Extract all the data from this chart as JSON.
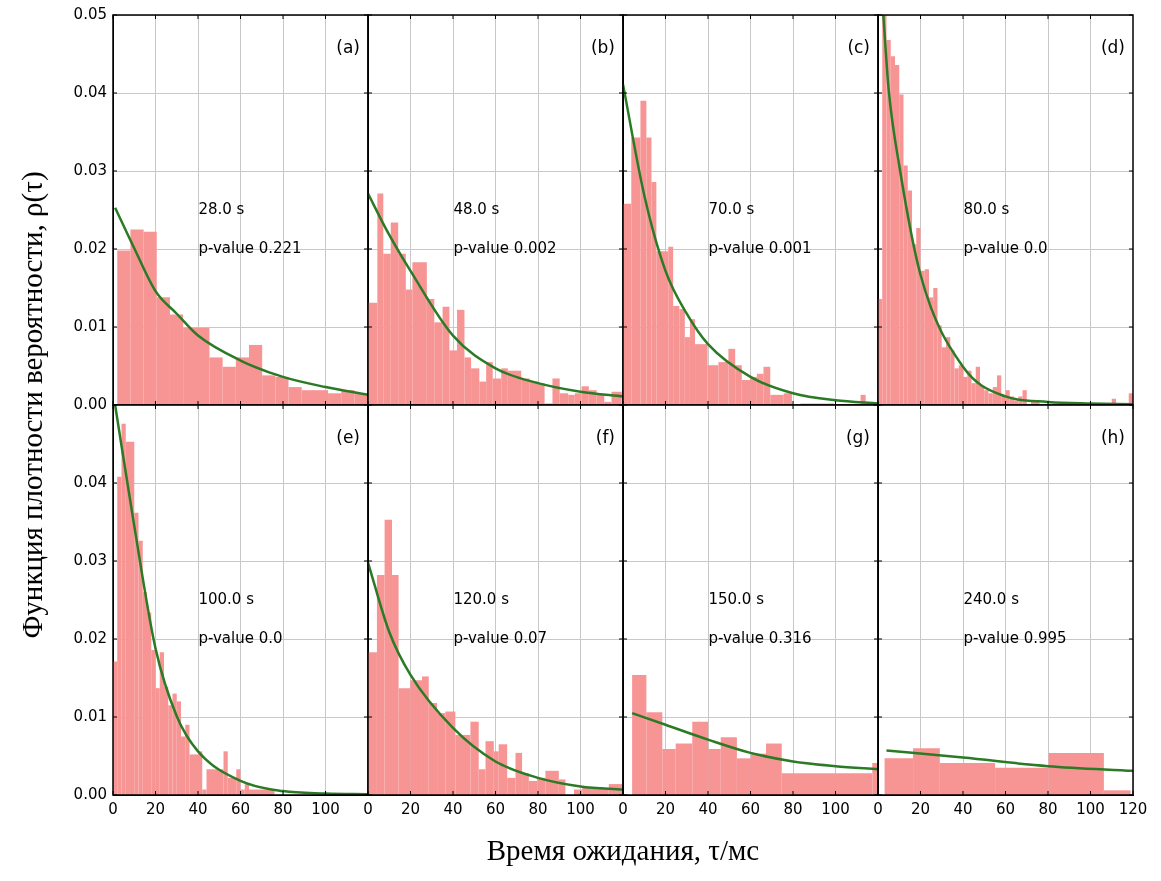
{
  "chart_data": [
    {
      "type": "histogram",
      "ylabel": "Функция плотности вероятности, ρ(τ)",
      "color": "#f79595",
      "tick_labels": "y",
      "grid": true,
      "xlim": [
        0,
        120
      ],
      "ylim": [
        0,
        0.05
      ],
      "xticks": [
        0,
        20,
        40,
        60,
        80,
        100
      ],
      "yticks": [
        {
          "value": 0,
          "label": "0.00"
        },
        {
          "value": 0.01,
          "label": "0.01"
        },
        {
          "value": 0.02,
          "label": "0.02"
        },
        {
          "value": 0.03,
          "label": "0.03"
        },
        {
          "value": 0.04,
          "label": "0.04"
        },
        {
          "value": 0.05,
          "label": "0.05"
        }
      ],
      "annotations": [
        "(a)",
        "28.0 s",
        "p-value 0.221"
      ],
      "bins": [
        2,
        8.2,
        14.4,
        20.6,
        26.8,
        33,
        45.4,
        51.6,
        57.8,
        64,
        70.2,
        76.4,
        82.6,
        88.8,
        101.2,
        107.4,
        113.6,
        119.8
      ],
      "values": [
        0.0198,
        0.0225,
        0.0222,
        0.0138,
        0.0116,
        0.0099,
        0.0061,
        0.0049,
        0.0061,
        0.0077,
        0.0038,
        0.0036,
        0.0023,
        0.0019,
        0.0015,
        0.0019,
        0.0015
      ],
      "series": [
        {
          "type": "line",
          "color": "#2b7a25",
          "x": [
            1,
            10,
            20,
            30,
            40,
            60,
            80,
            100,
            120
          ],
          "values": [
            0.0253,
            0.0201,
            0.0146,
            0.0117,
            0.0089,
            0.0057,
            0.0036,
            0.0023,
            0.0013
          ]
        }
      ]
    },
    {
      "type": "histogram",
      "color": "#f79595",
      "tick_labels": false,
      "grid": true,
      "xlim": [
        0,
        120
      ],
      "ylim": [
        0,
        0.05
      ],
      "xticks": [
        0,
        20,
        40,
        60,
        80,
        100
      ],
      "yticks": [
        0,
        0.01,
        0.02,
        0.03,
        0.04,
        0.05
      ],
      "annotations": [
        "(b)",
        "48.0 s",
        "p-value 0.002"
      ],
      "bins": [
        0,
        4.4,
        7.2,
        10.7,
        14.2,
        17.8,
        20.9,
        27.7,
        31.2,
        35.1,
        38.3,
        41.9,
        45.4,
        48.5,
        52.4,
        55.6,
        58.7,
        62.7,
        65.8,
        72.1,
        76.1,
        80,
        83.1,
        86.8,
        90.2,
        94.2,
        97.3,
        100.5,
        103.9,
        107.6,
        111.2,
        114.6,
        119.4
      ],
      "values": [
        0.0131,
        0.0271,
        0.0194,
        0.0234,
        0.0194,
        0.0148,
        0.0183,
        0.0136,
        0.0106,
        0.0126,
        0.007,
        0.0122,
        0.0061,
        0.0047,
        0.003,
        0.0055,
        0.0034,
        0.0047,
        0.0044,
        0.0034,
        0.003,
        0.0028,
        0.0002,
        0.0034,
        0.0015,
        0.0013,
        0.0015,
        0.0024,
        0.0019,
        0.0013,
        0.0004,
        0.0017
      ],
      "series": [
        {
          "type": "line",
          "color": "#2b7a25",
          "x": [
            0,
            10,
            20,
            40,
            60,
            80,
            100,
            120
          ],
          "values": [
            0.0271,
            0.0218,
            0.0172,
            0.0089,
            0.0047,
            0.0028,
            0.0017,
            0.0011
          ]
        }
      ]
    },
    {
      "type": "histogram",
      "color": "#f79595",
      "tick_labels": false,
      "grid": true,
      "xlim": [
        0,
        120
      ],
      "ylim": [
        0,
        0.05
      ],
      "xticks": [
        0,
        20,
        40,
        60,
        80,
        100
      ],
      "yticks": [
        0,
        0.01,
        0.02,
        0.03,
        0.04,
        0.05
      ],
      "annotations": [
        "(c)",
        "70.0 s",
        "p-value 0.001"
      ],
      "bins": [
        0,
        3.9,
        8.2,
        11.0,
        13.4,
        15.7,
        21.3,
        23.6,
        26.5,
        29.1,
        31.5,
        33.9,
        39.8,
        44.9,
        49.6,
        52.8,
        55.9,
        59.8,
        63.0,
        66.1,
        69.3,
        75.6,
        79.5,
        83.5,
        99.2,
        111.8,
        114.2
      ],
      "values": [
        0.0258,
        0.0343,
        0.039,
        0.0343,
        0.0286,
        0.0197,
        0.0203,
        0.0127,
        0.0123,
        0.0087,
        0.011,
        0.0078,
        0.0051,
        0.0055,
        0.0072,
        0.0051,
        0.0032,
        0.0036,
        0.004,
        0.0049,
        0.0013,
        0.0015,
        null,
        0.0002,
        0.0001,
        0.0013
      ],
      "series": [
        {
          "type": "line",
          "color": "#2b7a25",
          "x": [
            0,
            10,
            20,
            30,
            40,
            60,
            80,
            100,
            120
          ],
          "values": [
            0.0411,
            0.0269,
            0.0172,
            0.0117,
            0.0078,
            0.0036,
            0.0015,
            0.0006,
            0.0002
          ]
        }
      ]
    },
    {
      "type": "histogram",
      "color": "#f79595",
      "tick_labels": false,
      "grid": true,
      "xlim": [
        0,
        120
      ],
      "ylim": [
        0,
        0.05
      ],
      "xticks": [
        0,
        20,
        40,
        60,
        80,
        100
      ],
      "yticks": [
        0,
        0.01,
        0.02,
        0.03,
        0.04,
        0.05
      ],
      "annotations": [
        "(d)",
        "80.0 s",
        "p-value 0.0"
      ],
      "bins": [
        0,
        2,
        4,
        6,
        8,
        10,
        12,
        14,
        16,
        18,
        20,
        22,
        24,
        26,
        28,
        30,
        32,
        34,
        36,
        38,
        40,
        42,
        44,
        46,
        48,
        50,
        52,
        54,
        56,
        58,
        60,
        62,
        64,
        66,
        68,
        70,
        72,
        76,
        88,
        92,
        94,
        110,
        112,
        118,
        120
      ],
      "values": [
        0.0136,
        0.05,
        0.0468,
        0.0447,
        0.0436,
        0.0398,
        0.0307,
        0.0275,
        0.0206,
        0.0227,
        0.0172,
        0.0174,
        0.0138,
        0.015,
        0.0102,
        0.0074,
        0.0087,
        0.007,
        0.0047,
        0.0051,
        0.0036,
        0.0044,
        0.0028,
        0.0049,
        0.0025,
        0.0019,
        0.0015,
        0.0023,
        0.0038,
        0.0013,
        0.0019,
        0.0011,
        0.0006,
        0.0011,
        0.0019,
        null,
        0.0004,
        null,
        0.0001,
        null,
        0.0001,
        0.0008,
        null,
        0.0015
      ],
      "series": [
        {
          "type": "line",
          "color": "#2b7a25",
          "x": [
            2.5,
            5,
            10,
            20,
            40,
            60,
            80,
            100,
            120
          ],
          "values": [
            0.05,
            0.0405,
            0.0307,
            0.0167,
            0.0049,
            0.0011,
            0.0004,
            0.0002,
            0.0001
          ]
        }
      ]
    },
    {
      "type": "histogram",
      "xlabel": "Время ожидания, τ/мс",
      "color": "#f79595",
      "grid": true,
      "xlim": [
        0,
        120
      ],
      "ylim": [
        0,
        0.05
      ],
      "xticks": [
        0,
        20,
        40,
        60,
        80,
        100
      ],
      "yticks": [
        {
          "value": 0,
          "label": "0.00"
        },
        {
          "value": 0.01,
          "label": "0.01"
        },
        {
          "value": 0.02,
          "label": "0.02"
        },
        {
          "value": 0.03,
          "label": "0.03"
        },
        {
          "value": 0.04,
          "label": "0.04"
        },
        {
          "value": 0.05,
          "label": null
        }
      ],
      "annotations": [
        "(e)",
        "100.0 s",
        "p-value 0.0"
      ],
      "bins": [
        0,
        2,
        4,
        6,
        10,
        12,
        14,
        16,
        18,
        20,
        22,
        24,
        26,
        28,
        30,
        32,
        34,
        36,
        40,
        42,
        44,
        52,
        54,
        58,
        60,
        62,
        64,
        76
      ],
      "values": [
        0.0171,
        0.0408,
        0.0476,
        0.0453,
        0.0362,
        0.0326,
        0.026,
        0.0234,
        0.0186,
        0.0137,
        0.0183,
        0.0139,
        0.0115,
        0.013,
        0.012,
        0.0075,
        0.009,
        0.0052,
        0.0056,
        0.0007,
        0.0033,
        0.0056,
        0.0022,
        0.0033,
        0.0007,
        0.0014,
        0.0007
      ],
      "series": [
        {
          "type": "line",
          "color": "#2b7a25",
          "x": [
            1,
            10,
            20,
            30,
            40,
            60,
            80,
            100,
            120
          ],
          "values": [
            0.05,
            0.0345,
            0.0188,
            0.0101,
            0.0056,
            0.0018,
            0.0005,
            0.0002,
            0.0001
          ]
        }
      ]
    },
    {
      "type": "histogram",
      "color": "#f79595",
      "tick_labels": "x",
      "grid": true,
      "xlim": [
        0,
        120
      ],
      "ylim": [
        0,
        0.05
      ],
      "xticks": [
        0,
        20,
        40,
        60,
        80,
        100
      ],
      "yticks": [
        0,
        0.01,
        0.02,
        0.03,
        0.04,
        0.05
      ],
      "annotations": [
        "(f)",
        "120.0 s",
        "p-value 0.07"
      ],
      "bins": [
        0,
        4.2,
        7.8,
        11.3,
        14.4,
        19.9,
        25.4,
        28.6,
        32.5,
        36.4,
        41.1,
        48.2,
        52.1,
        55.3,
        59.2,
        61.5,
        65.5,
        69.4,
        72.5,
        75.7,
        79.6,
        83.5,
        89.8,
        92.9,
        96.9,
        100.8,
        113.3,
        119.6
      ],
      "values": [
        0.0183,
        0.0282,
        0.0353,
        0.0282,
        0.0137,
        0.0147,
        0.0152,
        0.0118,
        0.0105,
        0.0107,
        0.0077,
        0.0094,
        0.0033,
        0.0069,
        0.0056,
        0.0065,
        0.0022,
        0.0054,
        0.0028,
        0.0018,
        0.0022,
        0.0031,
        0.002,
        0,
        0.0007,
        0.0009,
        0.0014
      ],
      "series": [
        {
          "type": "line",
          "color": "#2b7a25",
          "x": [
            0,
            10,
            20,
            40,
            60,
            80,
            100,
            120
          ],
          "values": [
            0.0298,
            0.0209,
            0.0154,
            0.0086,
            0.0043,
            0.0022,
            0.0011,
            0.0007
          ]
        }
      ]
    },
    {
      "type": "histogram",
      "color": "#f79595",
      "tick_labels": "x",
      "grid": true,
      "xlim": [
        0,
        120
      ],
      "ylim": [
        0,
        0.05
      ],
      "xticks": [
        0,
        20,
        40,
        60,
        80,
        100
      ],
      "yticks": [
        0,
        0.01,
        0.02,
        0.03,
        0.04,
        0.05
      ],
      "annotations": [
        "(g)",
        "150.0 s",
        "p-value 0.316"
      ],
      "bins": [
        4.3,
        11.0,
        18.5,
        24.8,
        32.6,
        40.1,
        46.0,
        53.6,
        60.2,
        67.3,
        74.7,
        117.3,
        120
      ],
      "values": [
        0.0154,
        0.0106,
        0.0059,
        0.0066,
        0.0094,
        0.0059,
        0.0074,
        0.0047,
        0.0053,
        0.0066,
        0.0028,
        0.0041
      ],
      "series": [
        {
          "type": "line",
          "color": "#2b7a25",
          "x": [
            4.3,
            20,
            40,
            60,
            80,
            100,
            120
          ],
          "values": [
            0.0105,
            0.009,
            0.0071,
            0.0054,
            0.0043,
            0.0037,
            0.0033
          ]
        }
      ]
    },
    {
      "type": "histogram",
      "color": "#f79595",
      "tick_labels": "x",
      "grid": true,
      "xlim": [
        0,
        120
      ],
      "ylim": [
        0,
        0.05
      ],
      "xticks": [
        0,
        20,
        40,
        60,
        80,
        100,
        120
      ],
      "yticks": [
        0,
        0.01,
        0.02,
        0.03,
        0.04,
        0.05
      ],
      "annotations": [
        "(h)",
        "240.0 s",
        "p-value 0.995"
      ],
      "bins": [
        3.1,
        16.5,
        29.1,
        55.1,
        80.3,
        106.3,
        118.9
      ],
      "values": [
        0.0047,
        0.006,
        0.0041,
        0.0035,
        0.0054,
        0.0006
      ],
      "series": [
        {
          "type": "line",
          "color": "#2b7a25",
          "x": [
            4,
            40,
            80,
            120
          ],
          "values": [
            0.0057,
            0.0048,
            0.0037,
            0.0031
          ]
        }
      ]
    }
  ]
}
